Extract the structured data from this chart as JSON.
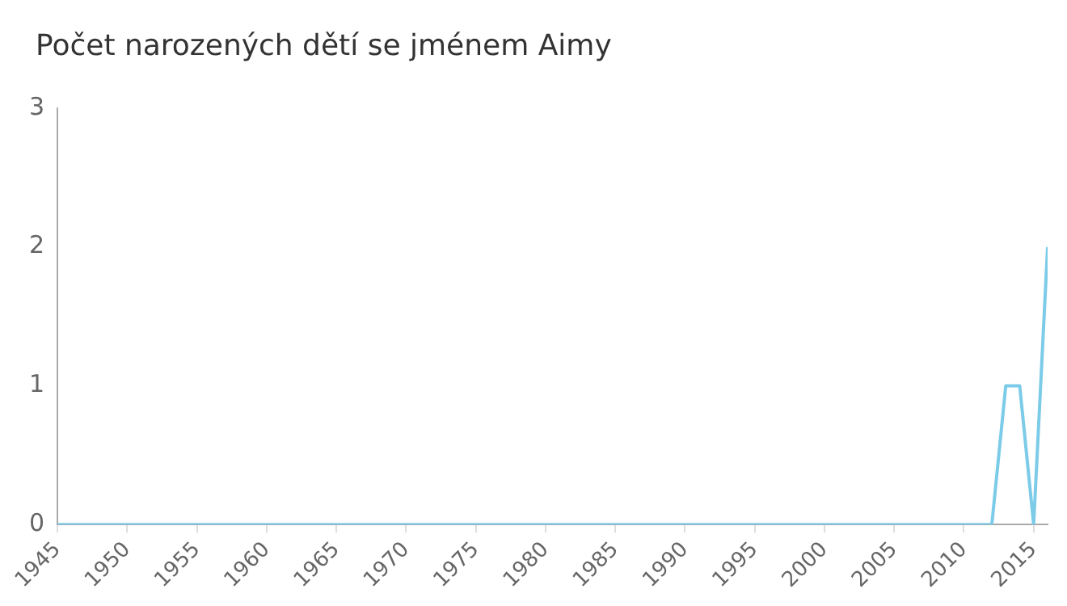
{
  "chart_data": {
    "type": "line",
    "title": "Počet narozených dětí se jménem Aimy",
    "x": [
      1945,
      2012,
      2013,
      2014,
      2015,
      2016
    ],
    "series": [
      {
        "color": "#7ccbe8",
        "values": [
          0,
          0,
          1,
          1,
          0,
          2
        ]
      }
    ],
    "xlim": [
      1945,
      2016
    ],
    "xticks": [
      1945,
      1950,
      1955,
      1960,
      1965,
      1970,
      1975,
      1980,
      1985,
      1990,
      1995,
      2000,
      2005,
      2010,
      2015
    ],
    "ylim": [
      0,
      3
    ],
    "yticks": [
      0,
      1,
      2,
      3
    ],
    "grid": false,
    "legend": false,
    "marker": "none",
    "line_style": "solid"
  }
}
